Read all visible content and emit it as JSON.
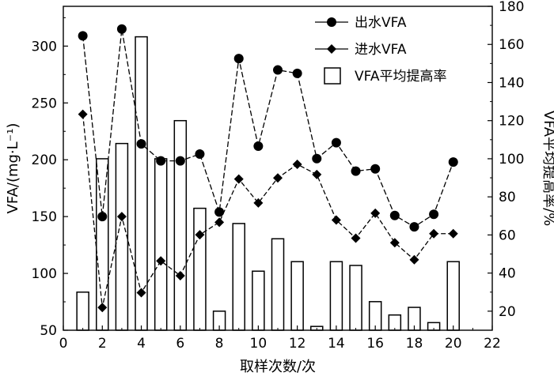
{
  "chart_data": {
    "type": "bar+line",
    "xlabel": "取样次数/次",
    "ylabel_left": "VFA/(mg·L⁻¹)",
    "ylabel_right": "VFA平均提高率/%",
    "xlim": [
      0,
      22
    ],
    "xticks": [
      0,
      2,
      4,
      6,
      8,
      10,
      12,
      14,
      16,
      18,
      20,
      22
    ],
    "ylim_left": [
      50,
      335
    ],
    "yticks_left": [
      50,
      100,
      150,
      200,
      250,
      300
    ],
    "ylim_right": [
      10,
      180
    ],
    "yticks_right": [
      20,
      40,
      60,
      80,
      100,
      120,
      140,
      160,
      180
    ],
    "legend_position": "top-right",
    "x": [
      1,
      2,
      3,
      4,
      5,
      6,
      7,
      8,
      9,
      10,
      11,
      12,
      13,
      14,
      15,
      16,
      17,
      18,
      19,
      20
    ],
    "series": [
      {
        "name": "出水VFA",
        "axis": "left",
        "kind": "line",
        "marker": "circle",
        "values": [
          309,
          150,
          315,
          214,
          199,
          199,
          205,
          154,
          289,
          212,
          279,
          276,
          201,
          215,
          190,
          192,
          151,
          141,
          152,
          198
        ]
      },
      {
        "name": "进水VFA",
        "axis": "left",
        "kind": "line",
        "marker": "diamond",
        "values": [
          240,
          70,
          150,
          83,
          111,
          98,
          134,
          145,
          183,
          162,
          184,
          196,
          187,
          147,
          131,
          153,
          127,
          112,
          135,
          135
        ]
      },
      {
        "name": "VFA平均提高率",
        "axis": "right",
        "kind": "bar",
        "values": [
          30,
          100,
          108,
          164,
          100,
          120,
          74,
          20,
          66,
          41,
          58,
          46,
          12,
          46,
          44,
          25,
          18,
          22,
          14,
          46
        ]
      }
    ]
  }
}
